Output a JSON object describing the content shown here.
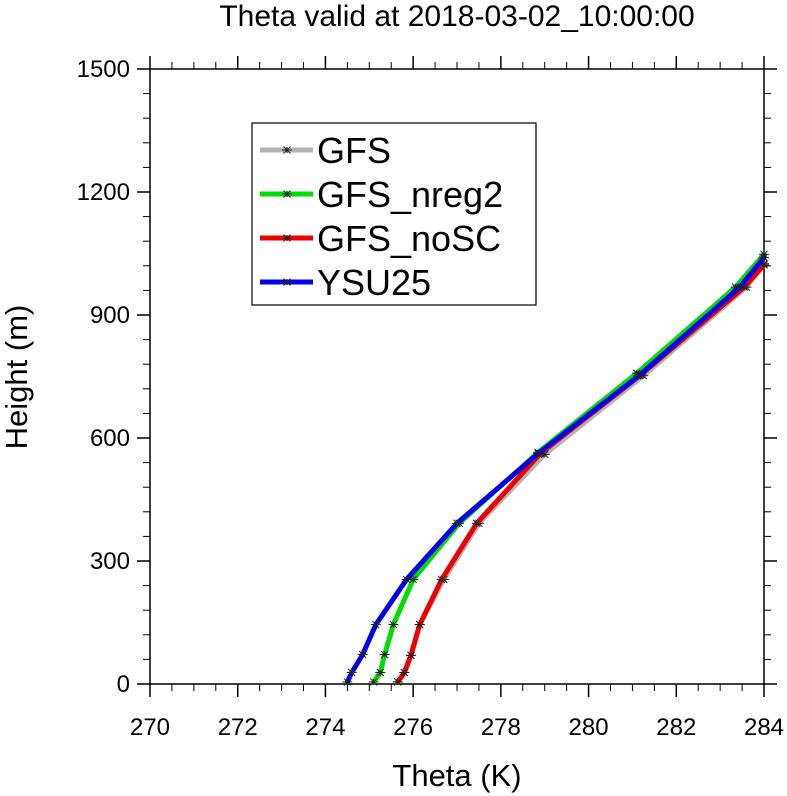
{
  "chart_data": {
    "type": "line",
    "title": "Theta valid at 2018-03-02_10:00:00",
    "xlabel": "Theta (K)",
    "ylabel": "Height (m)",
    "xlim": [
      270,
      284
    ],
    "ylim": [
      0,
      1500
    ],
    "xticks": [
      270,
      272,
      274,
      276,
      278,
      280,
      282,
      284
    ],
    "yticks": [
      0,
      300,
      600,
      900,
      1200,
      1500
    ],
    "grid": false,
    "legend_position": "top-left",
    "series": [
      {
        "name": "GFS",
        "color": "#b4b4b4",
        "marker": "asterisk",
        "points": [
          [
            275.65,
            5
          ],
          [
            275.8,
            28
          ],
          [
            275.95,
            70
          ],
          [
            276.15,
            145
          ],
          [
            276.7,
            255
          ],
          [
            277.5,
            392
          ],
          [
            279.0,
            560
          ],
          [
            281.25,
            752
          ],
          [
            283.6,
            968
          ],
          [
            284.0,
            1025
          ]
        ]
      },
      {
        "name": "GFS_nreg2",
        "color": "#00dd00",
        "marker": "asterisk",
        "points": [
          [
            275.1,
            5
          ],
          [
            275.25,
            28
          ],
          [
            275.35,
            72
          ],
          [
            275.55,
            145
          ],
          [
            276.0,
            255
          ],
          [
            277.05,
            392
          ],
          [
            278.85,
            565
          ],
          [
            281.1,
            758
          ],
          [
            283.35,
            968
          ],
          [
            284.0,
            1048
          ]
        ]
      },
      {
        "name": "GFS_noSC",
        "color": "#ee0000",
        "marker": "asterisk",
        "points": [
          [
            275.65,
            5
          ],
          [
            275.8,
            28
          ],
          [
            275.95,
            70
          ],
          [
            276.15,
            145
          ],
          [
            276.65,
            255
          ],
          [
            277.45,
            392
          ],
          [
            278.9,
            562
          ],
          [
            281.2,
            755
          ],
          [
            283.55,
            968
          ],
          [
            284.0,
            1022
          ]
        ]
      },
      {
        "name": "YSU25",
        "color": "#0000ee",
        "marker": "asterisk",
        "points": [
          [
            274.5,
            5
          ],
          [
            274.6,
            28
          ],
          [
            274.85,
            72
          ],
          [
            275.15,
            145
          ],
          [
            275.85,
            255
          ],
          [
            277.0,
            392
          ],
          [
            278.85,
            562
          ],
          [
            281.15,
            752
          ],
          [
            283.45,
            968
          ],
          [
            284.0,
            1040
          ]
        ]
      }
    ]
  }
}
